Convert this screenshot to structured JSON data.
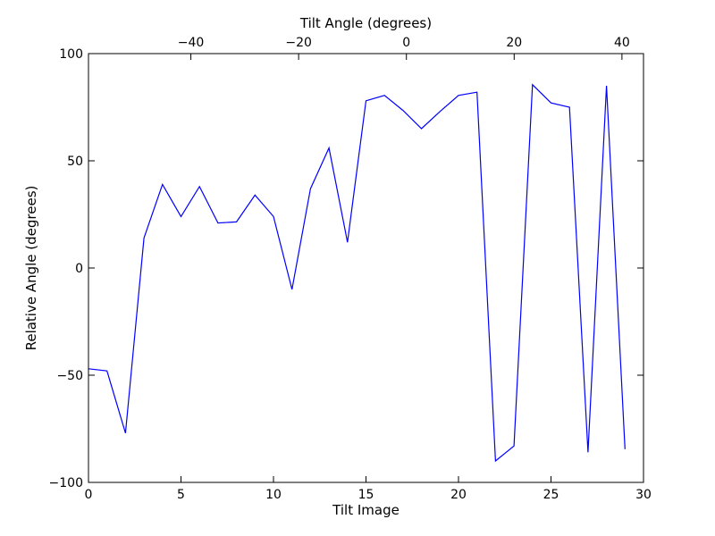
{
  "chart_data": {
    "type": "line",
    "xlabel": "Tilt Image",
    "ylabel": "Relative Angle (degrees)",
    "top_xlabel": "Tilt Angle (degrees)",
    "xlim": [
      0,
      30
    ],
    "ylim": [
      -100,
      100
    ],
    "top_xlim": [
      -59,
      44
    ],
    "x_ticks": [
      0,
      5,
      10,
      15,
      20,
      25,
      30
    ],
    "y_ticks": [
      -100,
      -50,
      0,
      50,
      100
    ],
    "top_x_ticks": [
      -40,
      -20,
      0,
      20,
      40
    ],
    "x_tick_labels": [
      "0",
      "5",
      "10",
      "15",
      "20",
      "25",
      "30"
    ],
    "y_tick_labels": [
      "−100",
      "−50",
      "0",
      "50",
      "100"
    ],
    "top_x_tick_labels": [
      "−40",
      "−20",
      "0",
      "20",
      "40"
    ],
    "grid": false,
    "series": [
      {
        "color": "#0000ff",
        "x": [
          0,
          1,
          2,
          3,
          4,
          5,
          6,
          7,
          8,
          9,
          10,
          11,
          12,
          13,
          14,
          15,
          16,
          17,
          18,
          19,
          20,
          21,
          22,
          23,
          24,
          25,
          26,
          27,
          28,
          29
        ],
        "values": [
          -47,
          -48,
          -77,
          14,
          39,
          24,
          38,
          21,
          21.5,
          34,
          24,
          -10,
          37,
          56,
          12,
          78,
          80.5,
          73.5,
          65,
          73,
          80.5,
          82,
          -90,
          -83,
          85.5,
          77,
          75,
          -86,
          85,
          -84.5
        ]
      }
    ]
  }
}
